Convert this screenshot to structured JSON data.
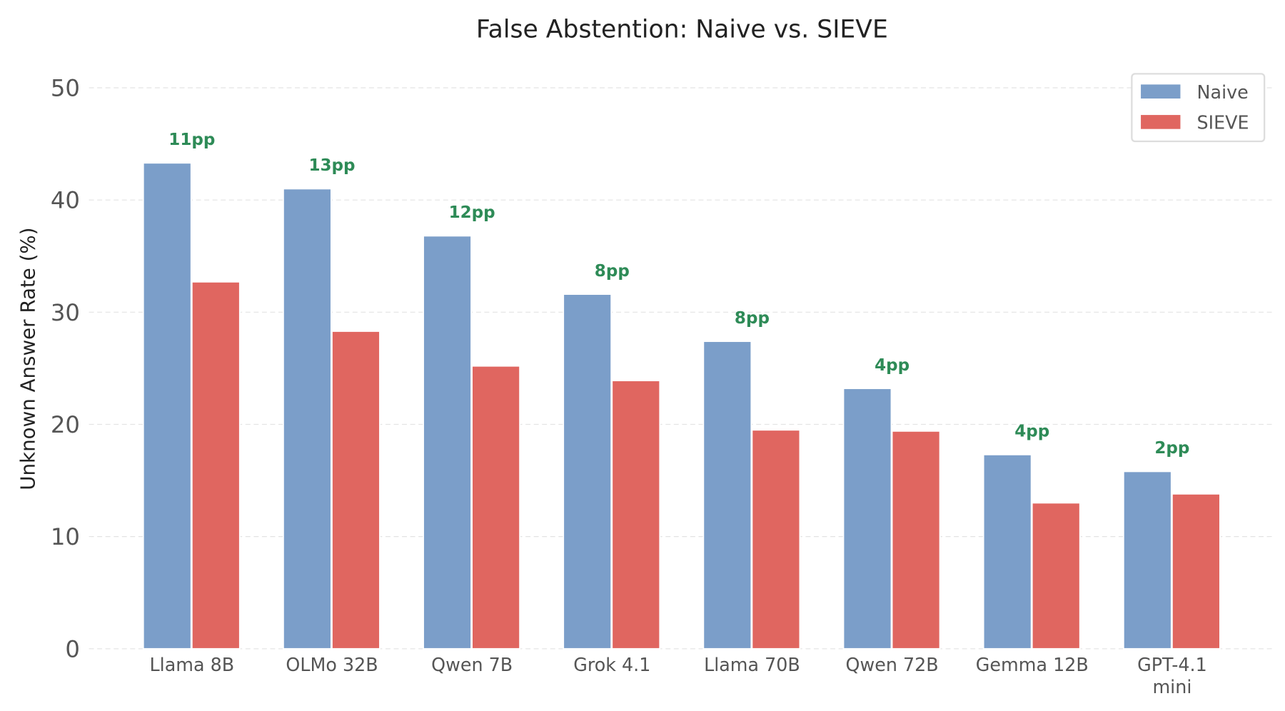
{
  "chart_data": {
    "type": "bar",
    "title": "False Abstention: Naive vs. SIEVE",
    "xlabel": "",
    "ylabel": "Unknown Answer Rate (%)",
    "ylim": [
      0,
      50
    ],
    "yticks": [
      0,
      10,
      20,
      30,
      40,
      50
    ],
    "grid": true,
    "legend_position": "top-right",
    "categories": [
      "Llama 8B",
      "OLMo 32B",
      "Qwen 7B",
      "Grok 4.1",
      "Llama 70B",
      "Qwen 72B",
      "Gemma 12B",
      "GPT-4.1\nmini"
    ],
    "series": [
      {
        "name": "Naive",
        "color": "#7b9ec9",
        "values": [
          43.3,
          41.0,
          36.8,
          31.6,
          27.4,
          23.2,
          17.3,
          15.8
        ]
      },
      {
        "name": "SIEVE",
        "color": "#e06660",
        "values": [
          32.7,
          28.3,
          25.2,
          23.9,
          19.5,
          19.4,
          13.0,
          13.8
        ]
      }
    ],
    "annotations": [
      "11pp",
      "13pp",
      "12pp",
      "8pp",
      "8pp",
      "4pp",
      "4pp",
      "2pp"
    ],
    "annotation_color": "#2e8b57"
  }
}
